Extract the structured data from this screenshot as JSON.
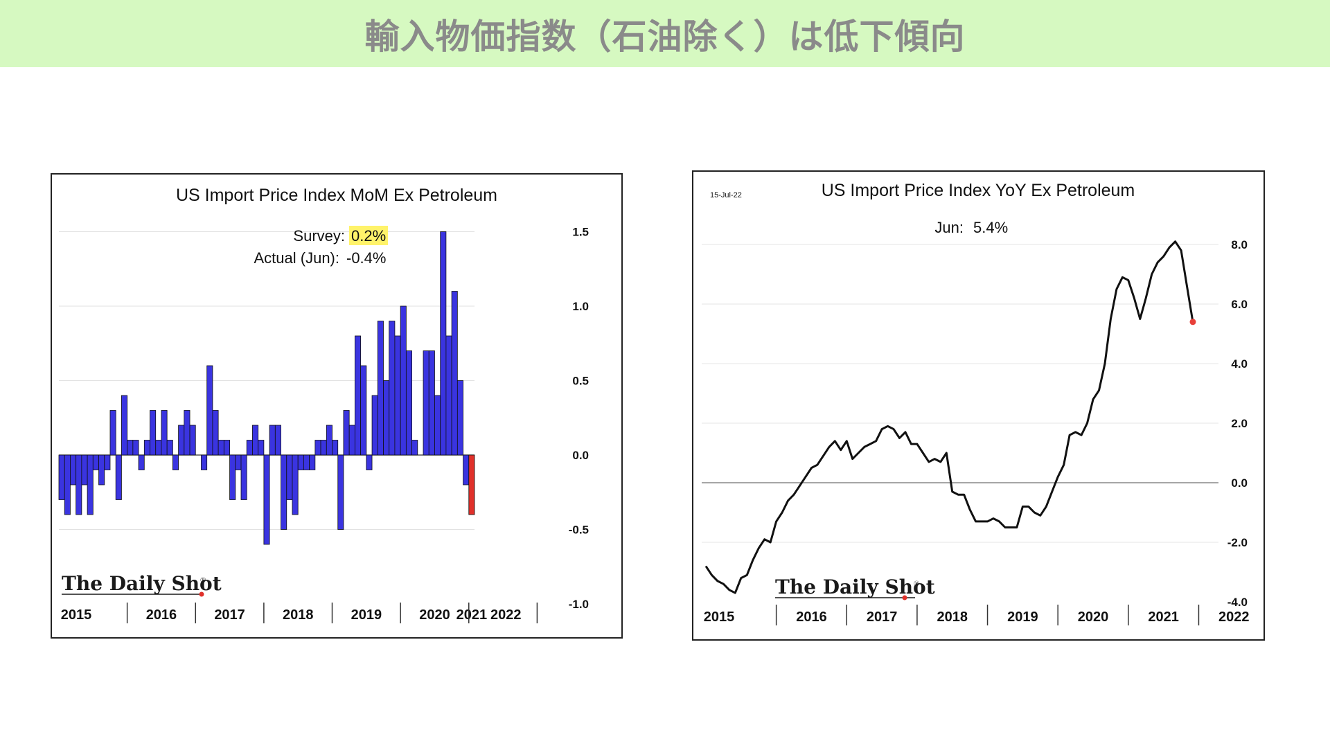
{
  "page_title": "輸入物価指数（石油除く）は低下傾向",
  "logo_text": "The Daily Shot",
  "logo_mark": "®",
  "colors": {
    "banner_bg": "#d6f9c1",
    "title_text": "#8a8a8a",
    "bar_positive_negative": "#3a34e0",
    "bar_latest": "#e0302a",
    "line": "#111111",
    "latest_point": "#e8403a",
    "survey_highlight": "#fff36a"
  },
  "chart_data": [
    {
      "type": "bar",
      "title": "US Import Price Index MoM Ex Petroleum",
      "survey_label": "Survey:",
      "survey_value": "0.2%",
      "actual_label": "Actual (Jun):",
      "actual_value": "-0.4%",
      "ylim": [
        -1.0,
        1.5
      ],
      "yticks": [
        "1.5",
        "1.0",
        "0.5",
        "0.0",
        "-0.5",
        "-1.0"
      ],
      "ytick_values": [
        1.5,
        1.0,
        0.5,
        0.0,
        -0.5,
        -1.0
      ],
      "year_labels": [
        "2015",
        "2016",
        "2017",
        "2018",
        "2019",
        "2020",
        "2021",
        "2022"
      ],
      "start": "2015-01",
      "values": [
        -0.3,
        -0.4,
        -0.2,
        -0.4,
        -0.2,
        -0.4,
        -0.1,
        -0.2,
        -0.1,
        0.3,
        -0.3,
        0.4,
        0.1,
        0.1,
        -0.1,
        0.1,
        0.3,
        0.1,
        0.3,
        0.1,
        -0.1,
        0.2,
        0.3,
        0.2,
        0.0,
        -0.1,
        0.6,
        0.3,
        0.1,
        0.1,
        -0.3,
        -0.1,
        -0.3,
        0.1,
        0.2,
        0.1,
        -0.6,
        0.2,
        0.2,
        -0.5,
        -0.3,
        -0.4,
        -0.1,
        -0.1,
        -0.1,
        0.1,
        0.1,
        0.2,
        0.1,
        -0.5,
        0.3,
        0.2,
        0.8,
        0.6,
        -0.1,
        0.4,
        0.9,
        0.5,
        0.9,
        0.8,
        1.0,
        0.7,
        0.1,
        0.0,
        0.7,
        0.7,
        0.4,
        1.5,
        0.8,
        1.1,
        0.5,
        -0.2,
        -0.4
      ]
    },
    {
      "type": "line",
      "title": "US Import Price Index YoY Ex Petroleum",
      "date_label": "15-Jul-22",
      "latest_label": "Jun:",
      "latest_value": "5.4%",
      "ylim": [
        -4.0,
        8.0
      ],
      "yticks": [
        "8.0",
        "6.0",
        "4.0",
        "2.0",
        "0.0",
        "-2.0",
        "-4.0"
      ],
      "ytick_values": [
        8.0,
        6.0,
        4.0,
        2.0,
        0.0,
        -2.0,
        -4.0
      ],
      "year_labels": [
        "2015",
        "2016",
        "2017",
        "2018",
        "2019",
        "2020",
        "2021",
        "2022"
      ],
      "start": "2015-01",
      "values": [
        -2.8,
        -3.1,
        -3.3,
        -3.4,
        -3.6,
        -3.7,
        -3.2,
        -3.1,
        -2.6,
        -2.2,
        -1.9,
        -2.0,
        -1.3,
        -1.0,
        -0.6,
        -0.4,
        -0.1,
        0.2,
        0.5,
        0.6,
        0.9,
        1.2,
        1.4,
        1.1,
        1.4,
        0.8,
        1.0,
        1.2,
        1.3,
        1.4,
        1.8,
        1.9,
        1.8,
        1.5,
        1.7,
        1.3,
        1.3,
        1.0,
        0.7,
        0.8,
        0.7,
        1.0,
        -0.3,
        -0.4,
        -0.4,
        -0.9,
        -1.3,
        -1.3,
        -1.3,
        -1.2,
        -1.3,
        -1.5,
        -1.5,
        -1.5,
        -0.8,
        -0.8,
        -1.0,
        -1.1,
        -0.8,
        -0.3,
        0.2,
        0.6,
        1.6,
        1.7,
        1.6,
        2.0,
        2.8,
        3.1,
        4.0,
        5.5,
        6.5,
        6.9,
        6.8,
        6.2,
        5.5,
        6.2,
        7.0,
        7.4,
        7.6,
        7.9,
        8.1,
        7.8,
        6.6,
        5.4
      ]
    }
  ]
}
